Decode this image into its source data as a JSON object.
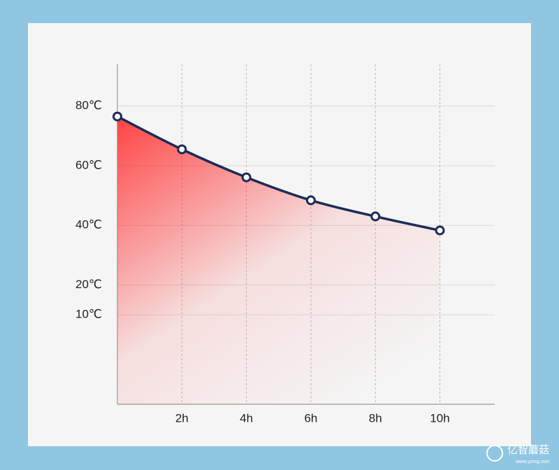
{
  "chart_data": {
    "type": "line",
    "x": [
      0,
      2,
      4,
      6,
      8,
      10
    ],
    "series": [
      {
        "color": "#1c2b57",
        "values": [
          76.5,
          65.5,
          56.1,
          48.4,
          43.0,
          38.3
        ]
      }
    ],
    "xlim": [
      0,
      11.7
    ],
    "xticks": [
      {
        "value": 2,
        "label": "2h"
      },
      {
        "value": 4,
        "label": "4h"
      },
      {
        "value": 6,
        "label": "6h"
      },
      {
        "value": 8,
        "label": "8h"
      },
      {
        "value": 10,
        "label": "10h"
      }
    ],
    "ylim": [
      -20,
      94
    ],
    "yticks": [
      {
        "value": 80,
        "label": "80℃"
      },
      {
        "value": 60,
        "label": "60℃"
      },
      {
        "value": 40,
        "label": "40℃"
      },
      {
        "value": 20,
        "label": "20℃"
      },
      {
        "value": 10,
        "label": "10℃"
      }
    ],
    "grid": true,
    "fill_color": "#ff3a3a"
  },
  "watermark": {
    "text": "亿智蘑菇",
    "url": "www.yzmg.com"
  }
}
